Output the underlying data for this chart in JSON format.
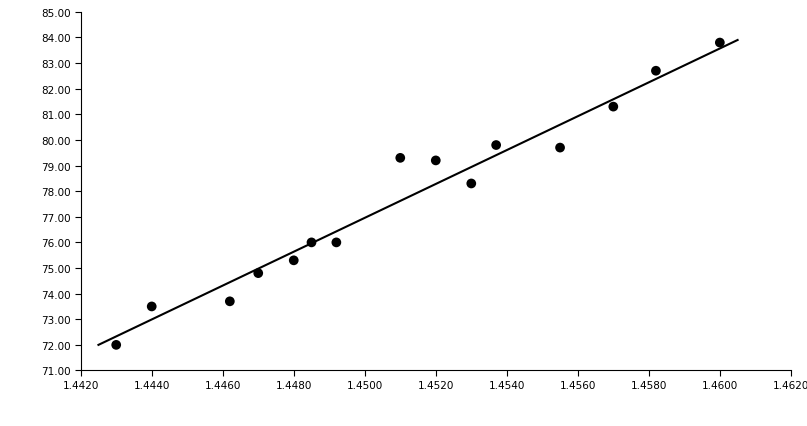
{
  "scatter_x": [
    1.443,
    1.444,
    1.4462,
    1.447,
    1.448,
    1.4485,
    1.4492,
    1.451,
    1.452,
    1.453,
    1.4537,
    1.4555,
    1.457,
    1.4582,
    1.46
  ],
  "scatter_y": [
    72.0,
    73.5,
    73.7,
    74.8,
    75.3,
    76.0,
    76.0,
    79.3,
    79.2,
    78.3,
    79.8,
    79.7,
    81.3,
    82.7,
    83.8
  ],
  "trendline_x": [
    1.4425,
    1.4605
  ],
  "trendline_y": [
    72.0,
    83.9
  ],
  "xlim": [
    1.442,
    1.462
  ],
  "ylim": [
    71.0,
    85.0
  ],
  "xticks": [
    1.442,
    1.444,
    1.446,
    1.448,
    1.45,
    1.452,
    1.454,
    1.456,
    1.458,
    1.46,
    1.462
  ],
  "yticks": [
    71.0,
    72.0,
    73.0,
    74.0,
    75.0,
    76.0,
    77.0,
    78.0,
    79.0,
    80.0,
    81.0,
    82.0,
    83.0,
    84.0,
    85.0
  ],
  "scatter_color": "#000000",
  "line_color": "#000000",
  "bg_color": "#ffffff",
  "marker_size": 7,
  "line_width": 1.5,
  "figsize": [
    8.07,
    4.27
  ],
  "dpi": 100
}
